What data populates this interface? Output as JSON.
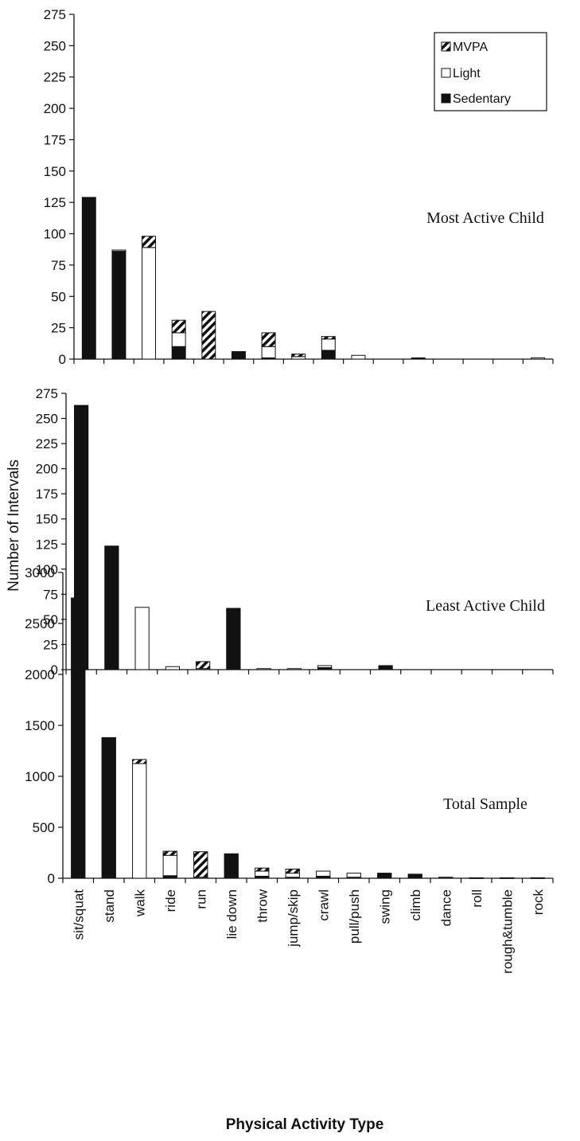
{
  "figure": {
    "ylabel": "Number of Intervals",
    "xlabel": "Physical Activity Type"
  },
  "colors": {
    "sedentary": "#111111",
    "light": "#ffffff",
    "mvpa_hatch": "#111111",
    "axis": "#111111"
  },
  "chart_data": [
    {
      "type": "bar",
      "stacked": true,
      "title": "Most Active Child",
      "categories": [
        "sit/squat",
        "stand",
        "walk",
        "ride",
        "run",
        "lie down",
        "throw",
        "jump/skip",
        "crawl",
        "pull/push",
        "swing",
        "climb",
        "dance",
        "roll",
        "rough&tumble",
        "rock"
      ],
      "ylim": [
        0,
        275
      ],
      "yticks": [
        0,
        25,
        50,
        75,
        100,
        125,
        150,
        175,
        200,
        225,
        250,
        275
      ],
      "legend": {
        "placement": "top-right",
        "entries": [
          "MVPA",
          "Light",
          "Sedentary"
        ]
      },
      "series": [
        {
          "name": "Sedentary",
          "values": [
            129,
            86,
            0,
            10,
            0,
            6,
            1,
            0,
            7,
            0,
            0,
            1,
            0,
            0,
            0,
            0
          ]
        },
        {
          "name": "Light",
          "values": [
            0,
            1,
            89,
            11,
            0,
            0,
            9,
            2,
            9,
            3,
            0,
            0,
            0,
            0,
            0,
            1
          ]
        },
        {
          "name": "MVPA",
          "values": [
            0,
            0,
            9,
            10,
            38,
            0,
            11,
            2,
            2,
            0,
            0,
            0,
            0,
            0,
            0,
            0
          ]
        }
      ]
    },
    {
      "type": "bar",
      "stacked": true,
      "title": "Least Active Child",
      "categories": [
        "sit/squat",
        "stand",
        "walk",
        "ride",
        "run",
        "lie down",
        "throw",
        "jump/skip",
        "crawl",
        "pull/push",
        "swing",
        "climb",
        "dance",
        "roll",
        "rough&tumble",
        "rock"
      ],
      "ylim": [
        0,
        275
      ],
      "yticks": [
        0,
        25,
        50,
        75,
        100,
        125,
        150,
        175,
        200,
        225,
        250,
        275
      ],
      "series": [
        {
          "name": "Sedentary",
          "values": [
            263,
            123,
            0,
            0,
            0,
            61,
            0,
            0,
            2,
            0,
            4,
            0,
            0,
            0,
            0,
            0
          ]
        },
        {
          "name": "Light",
          "values": [
            0,
            0,
            62,
            3,
            1,
            0,
            1,
            1,
            2,
            0,
            0,
            0,
            0,
            0,
            0,
            0
          ]
        },
        {
          "name": "MVPA",
          "values": [
            0,
            0,
            0,
            0,
            7,
            0,
            0,
            0,
            0,
            0,
            0,
            0,
            0,
            0,
            0,
            0
          ]
        }
      ]
    },
    {
      "type": "bar",
      "stacked": true,
      "title": "Total Sample",
      "categories": [
        "sit/squat",
        "stand",
        "walk",
        "ride",
        "run",
        "lie down",
        "throw",
        "jump/skip",
        "crawl",
        "pull/push",
        "swing",
        "climb",
        "dance",
        "roll",
        "rough&tumble",
        "rock"
      ],
      "ylim": [
        0,
        3000
      ],
      "yticks": [
        0,
        500,
        1000,
        1500,
        2000,
        2500,
        3000
      ],
      "series": [
        {
          "name": "Sedentary",
          "values": [
            2750,
            1375,
            0,
            25,
            0,
            240,
            20,
            10,
            20,
            10,
            50,
            40,
            10,
            5,
            5,
            5
          ]
        },
        {
          "name": "Light",
          "values": [
            0,
            5,
            1125,
            200,
            10,
            0,
            50,
            40,
            50,
            40,
            0,
            0,
            0,
            0,
            0,
            0
          ]
        },
        {
          "name": "MVPA",
          "values": [
            0,
            0,
            40,
            40,
            250,
            0,
            30,
            40,
            0,
            0,
            0,
            0,
            0,
            0,
            0,
            0
          ]
        }
      ]
    }
  ]
}
